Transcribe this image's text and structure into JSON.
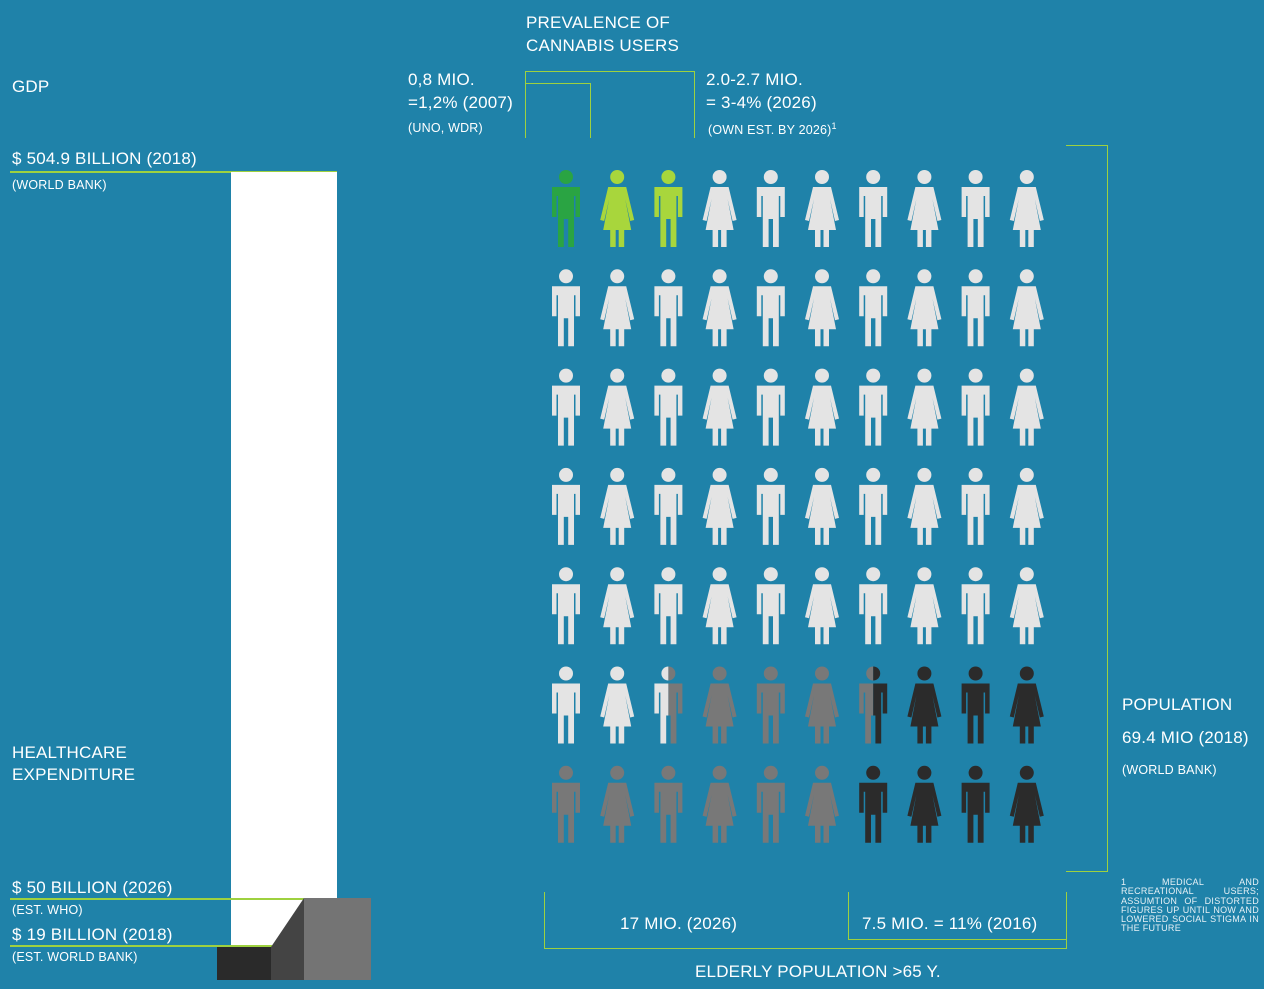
{
  "colors": {
    "background": "#1f82a9",
    "accent": "#9ed13f",
    "user_dark_green": "#2aa443",
    "user_light_green": "#a8d63c",
    "person_light": "#e4e4e4",
    "person_grey": "#787878",
    "person_dark": "#2b2b2b"
  },
  "header": {
    "prevalence_title_1": "PREVALENCE OF",
    "prevalence_title_2": "CANNABIS USERS",
    "left_value_1": "0,8 MIO.",
    "left_value_2": "=1,2% (2007)",
    "left_source": "(UNO, WDR)",
    "right_value_1": "2.0-2.7 MIO.",
    "right_value_2": "= 3-4% (2026)",
    "right_source": "(OWN EST. BY 2026)",
    "right_footnote_mark": "1"
  },
  "gdp": {
    "title": "GDP",
    "value": "$ 504.9 BILLION (2018)",
    "source": "(WORLD BANK)"
  },
  "healthcare": {
    "title_1": "HEALTHCARE",
    "title_2": "EXPENDITURE",
    "value_2026": "$ 50 BILLION (2026)",
    "source_2026": "(EST. WHO)",
    "value_2018": "$ 19 BILLION (2018)",
    "source_2018": "(EST. WORLD BANK)"
  },
  "population": {
    "title": "POPULATION",
    "value": "69.4 MIO (2018)",
    "source": "(WORLD BANK)"
  },
  "elderly": {
    "value_2026": "17 MIO. (2026)",
    "value_2016": "7.5 MIO. = 11% (2016)",
    "label": "ELDERLY POPULATION >65 Y."
  },
  "footnote": "1 MEDICAL AND RECREATIONAL USERS; ASSUMTION OF DISTORTED FIGURES UP UNTIL NOW AND LOWERED SOCIAL STIGMA IN THE FUTURE",
  "chart_data": {
    "type": "pictogram",
    "rows": 7,
    "cols": 10,
    "population_total_mio": 69.4,
    "gender_pattern": [
      "male",
      "female",
      "male",
      "female",
      "male",
      "female",
      "male",
      "female",
      "male",
      "female"
    ],
    "person_states": [
      [
        "user_dark",
        "user_light",
        "user_light",
        "light",
        "light",
        "light",
        "light",
        "light",
        "light",
        "light"
      ],
      [
        "light",
        "light",
        "light",
        "light",
        "light",
        "light",
        "light",
        "light",
        "light",
        "light"
      ],
      [
        "light",
        "light",
        "light",
        "light",
        "light",
        "light",
        "light",
        "light",
        "light",
        "light"
      ],
      [
        "light",
        "light",
        "light",
        "light",
        "light",
        "light",
        "light",
        "light",
        "light",
        "light"
      ],
      [
        "light",
        "light",
        "light",
        "light",
        "light",
        "light",
        "light",
        "light",
        "light",
        "light"
      ],
      [
        "light",
        "light",
        "half_light_grey",
        "grey",
        "grey",
        "grey",
        "half_grey_dark",
        "dark",
        "dark",
        "dark"
      ],
      [
        "grey",
        "grey",
        "grey",
        "grey",
        "grey",
        "grey",
        "dark",
        "dark",
        "dark",
        "dark"
      ]
    ],
    "bars_billion_usd": [
      {
        "label": "GDP",
        "year": 2018,
        "value": 504.9
      },
      {
        "label": "Healthcare expenditure",
        "year": 2026,
        "value": 50
      },
      {
        "label": "Healthcare expenditure",
        "year": 2018,
        "value": 19
      }
    ],
    "cannabis_users": [
      {
        "year": 2007,
        "mio": 0.8,
        "percent": 1.2
      },
      {
        "year": 2026,
        "mio_range": [
          2.0,
          2.7
        ],
        "percent_range": [
          3,
          4
        ]
      }
    ],
    "elderly_population": [
      {
        "year": 2026,
        "mio": 17
      },
      {
        "year": 2016,
        "mio": 7.5,
        "percent": 11
      }
    ]
  }
}
